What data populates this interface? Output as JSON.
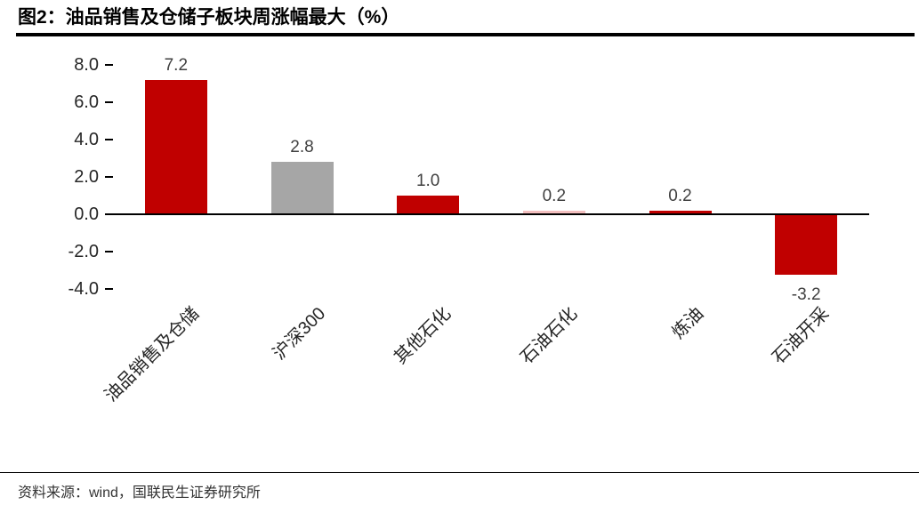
{
  "header": {
    "title": "图2：油品销售及仓储子板块周涨幅最大（%）"
  },
  "chart_data": {
    "type": "bar",
    "title": "图2：油品销售及仓储子板块周涨幅最大（%）",
    "categories": [
      "油品销售及仓储",
      "沪深300",
      "其他石化",
      "石油石化",
      "炼油",
      "石油开采"
    ],
    "values": [
      7.2,
      2.8,
      1.0,
      0.2,
      0.2,
      -3.2
    ],
    "value_labels": [
      "7.2",
      "2.8",
      "1.0",
      "0.2",
      "0.2",
      "-3.2"
    ],
    "bar_colors": [
      "#C00000",
      "#A6A6A6",
      "#C00000",
      "#F2BEBE",
      "#C00000",
      "#C00000"
    ],
    "xlabel": "",
    "ylabel": "",
    "ylim": [
      -4.0,
      8.0
    ],
    "yticks": [
      8.0,
      6.0,
      4.0,
      2.0,
      0.0,
      -2.0,
      -4.0
    ],
    "ytick_labels": [
      "8.0",
      "6.0",
      "4.0",
      "2.0",
      "0.0",
      "-2.0",
      "-4.0"
    ],
    "grid": false,
    "legend": "none"
  },
  "footer": {
    "source": "资料来源：wind，国联民生证券研究所"
  },
  "colors": {
    "bar_red": "#C00000",
    "bar_gray": "#A6A6A6",
    "bar_pink": "#F2BEBE",
    "axis": "#000000",
    "title_text": "#000000",
    "label_text": "#262626"
  }
}
